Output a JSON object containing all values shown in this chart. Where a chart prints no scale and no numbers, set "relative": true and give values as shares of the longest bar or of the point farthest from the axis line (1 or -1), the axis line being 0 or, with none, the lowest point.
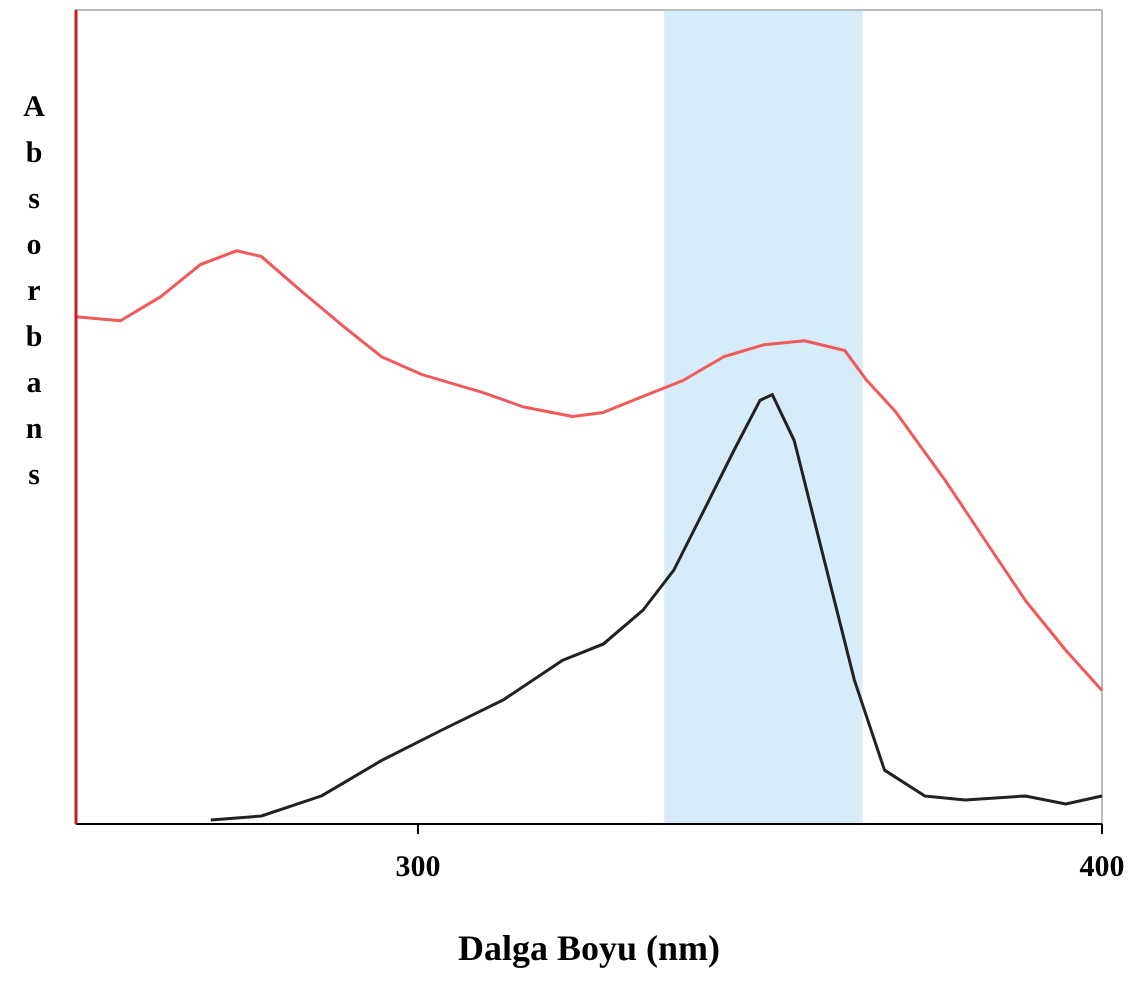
{
  "chart_data": {
    "type": "line",
    "relative": true,
    "xlabel": "Dalga Boyu  (nm)",
    "ylabel": "Absorbans",
    "xlim": [
      250,
      400
    ],
    "xticks": [
      300,
      400
    ],
    "bands": [
      {
        "axis": "x",
        "from": 336,
        "to": 365,
        "color": "#d6ecf8"
      }
    ],
    "series": [
      {
        "color": "#f05a5a",
        "x": [
          250,
          256.5,
          262.4,
          268.2,
          273.5,
          277.1,
          282.9,
          288.8,
          294.7,
          300.6,
          309.4,
          315.3,
          322.6,
          327.1,
          332.9,
          338.8,
          344.7,
          350.6,
          356.5,
          362.4,
          365.6,
          369.7,
          377.1,
          382.9,
          388.8,
          394.7,
          400
        ],
        "values": [
          0.885,
          0.878,
          0.92,
          0.976,
          1,
          0.99,
          0.93,
          0.871,
          0.815,
          0.784,
          0.753,
          0.728,
          0.711,
          0.718,
          0.746,
          0.774,
          0.815,
          0.836,
          0.843,
          0.826,
          0.774,
          0.721,
          0.599,
          0.495,
          0.39,
          0.303,
          0.233
        ]
      },
      {
        "color": "#222222",
        "x": [
          269.7,
          277.1,
          285.9,
          294.7,
          303.5,
          312.4,
          321.2,
          327.1,
          332.9,
          337.4,
          341.8,
          346.2,
          350,
          351.8,
          355,
          359.4,
          363.8,
          368.2,
          374.1,
          380,
          388.8,
          394.7,
          400
        ],
        "values": [
          0.007,
          0.014,
          0.049,
          0.111,
          0.164,
          0.216,
          0.286,
          0.314,
          0.373,
          0.443,
          0.547,
          0.652,
          0.739,
          0.749,
          0.669,
          0.46,
          0.251,
          0.094,
          0.049,
          0.042,
          0.049,
          0.035,
          0.049
        ]
      }
    ]
  }
}
